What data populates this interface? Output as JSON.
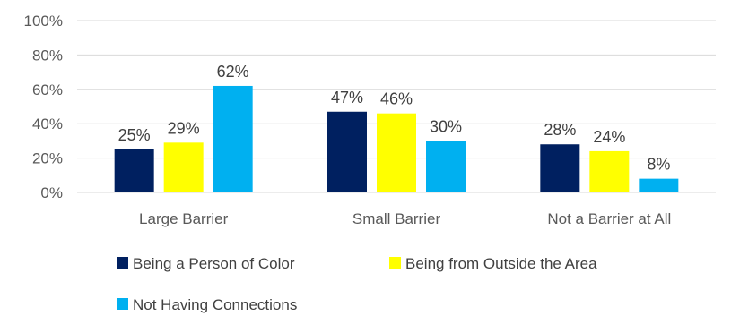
{
  "chart_data": {
    "type": "bar",
    "categories": [
      "Large Barrier",
      "Small Barrier",
      "Not a Barrier at All"
    ],
    "series": [
      {
        "name": "Being a Person of Color",
        "values": [
          25,
          47,
          28
        ],
        "color": "#002060"
      },
      {
        "name": "Being from Outside the Area",
        "values": [
          29,
          46,
          24
        ],
        "color": "#FFFF00"
      },
      {
        "name": "Not Having Connections",
        "values": [
          62,
          30,
          8
        ],
        "color": "#00B0F0"
      }
    ],
    "ylim": [
      0,
      100
    ],
    "yticks": [
      0,
      20,
      40,
      60,
      80,
      100
    ],
    "ytick_labels": [
      "0%",
      "20%",
      "40%",
      "60%",
      "80%",
      "100%"
    ],
    "value_suffix": "%",
    "grid": true,
    "legend_position": "bottom",
    "gridline_color": "#D9D9D9"
  }
}
